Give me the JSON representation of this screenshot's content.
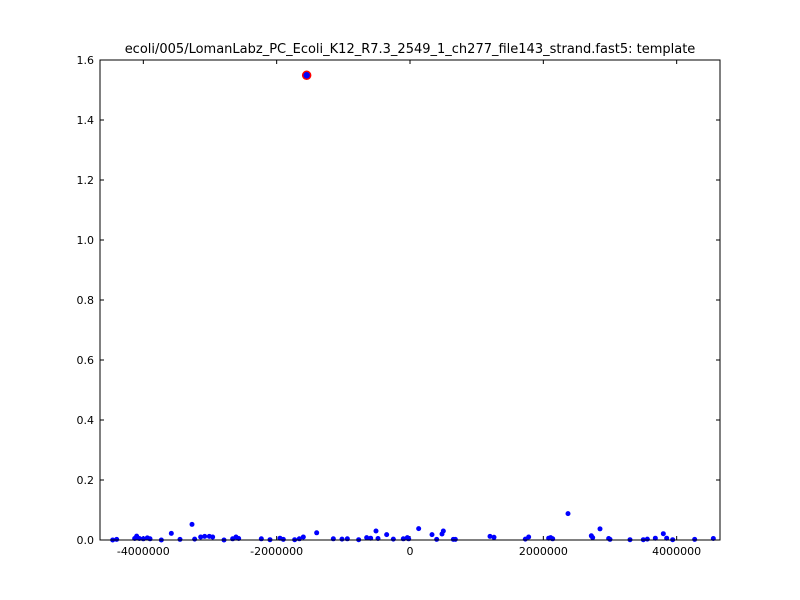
{
  "chart_data": {
    "type": "scatter",
    "title": "ecoli/005/LomanLabz_PC_Ecoli_K12_R7.3_2549_1_ch277_file143_strand.fast5: template",
    "xlabel": "",
    "ylabel": "",
    "xlim": [
      -4650000,
      4650000
    ],
    "ylim": [
      0,
      1.6
    ],
    "xticks": [
      -4000000,
      -2000000,
      0,
      2000000,
      4000000
    ],
    "xtick_labels": [
      "-4000000",
      "-2000000",
      "0",
      "2000000",
      "4000000"
    ],
    "yticks": [
      0.0,
      0.2,
      0.4,
      0.6,
      0.8,
      1.0,
      1.2,
      1.4,
      1.6
    ],
    "ytick_labels": [
      "0.0",
      "0.2",
      "0.4",
      "0.6",
      "0.8",
      "1.0",
      "1.2",
      "1.4",
      "1.6"
    ],
    "grid": false,
    "colors": {
      "points": "#0000ff",
      "highlight_fill": "#0000ff",
      "highlight_ring": "#ff0000"
    },
    "highlight": {
      "x": -1550000,
      "y": 1.549
    },
    "series": [
      {
        "points": [
          [
            -4460000,
            0.0
          ],
          [
            -4400000,
            0.002
          ],
          [
            -4130000,
            0.005
          ],
          [
            -4100000,
            0.013
          ],
          [
            -4060000,
            0.005
          ],
          [
            -4000000,
            0.004
          ],
          [
            -3940000,
            0.007
          ],
          [
            -3900000,
            0.004
          ],
          [
            -3730000,
            0.0
          ],
          [
            -3580000,
            0.022
          ],
          [
            -3450000,
            0.002
          ],
          [
            -3270000,
            0.052
          ],
          [
            -3230000,
            0.003
          ],
          [
            -3140000,
            0.01
          ],
          [
            -3080000,
            0.012
          ],
          [
            -3010000,
            0.012
          ],
          [
            -2960000,
            0.01
          ],
          [
            -2790000,
            0.0
          ],
          [
            -2660000,
            0.004
          ],
          [
            -2610000,
            0.01
          ],
          [
            -2570000,
            0.005
          ],
          [
            -2230000,
            0.004
          ],
          [
            -2100000,
            0.001
          ],
          [
            -1950000,
            0.006
          ],
          [
            -1900000,
            0.002
          ],
          [
            -1730000,
            0.001
          ],
          [
            -1660000,
            0.004
          ],
          [
            -1600000,
            0.01
          ],
          [
            -1400000,
            0.024
          ],
          [
            -1150000,
            0.004
          ],
          [
            -1020000,
            0.003
          ],
          [
            -940000,
            0.004
          ],
          [
            -770000,
            0.001
          ],
          [
            -650000,
            0.008
          ],
          [
            -590000,
            0.006
          ],
          [
            -510000,
            0.03
          ],
          [
            -480000,
            0.005
          ],
          [
            -350000,
            0.018
          ],
          [
            -250000,
            0.003
          ],
          [
            -100000,
            0.004
          ],
          [
            -40000,
            0.008
          ],
          [
            -20000,
            0.004
          ],
          [
            130000,
            0.038
          ],
          [
            330000,
            0.018
          ],
          [
            400000,
            0.002
          ],
          [
            480000,
            0.02
          ],
          [
            500000,
            0.03
          ],
          [
            650000,
            0.002
          ],
          [
            680000,
            0.002
          ],
          [
            1200000,
            0.012
          ],
          [
            1260000,
            0.009
          ],
          [
            1730000,
            0.003
          ],
          [
            1780000,
            0.01
          ],
          [
            2080000,
            0.006
          ],
          [
            2110000,
            0.008
          ],
          [
            2140000,
            0.004
          ],
          [
            2370000,
            0.088
          ],
          [
            2720000,
            0.014
          ],
          [
            2740000,
            0.008
          ],
          [
            2850000,
            0.037
          ],
          [
            2980000,
            0.005
          ],
          [
            3000000,
            0.002
          ],
          [
            3300000,
            0.001
          ],
          [
            3500000,
            0.001
          ],
          [
            3560000,
            0.003
          ],
          [
            3680000,
            0.006
          ],
          [
            3800000,
            0.021
          ],
          [
            3850000,
            0.006
          ],
          [
            3940000,
            0.001
          ],
          [
            4270000,
            0.002
          ],
          [
            4550000,
            0.005
          ]
        ]
      }
    ]
  }
}
